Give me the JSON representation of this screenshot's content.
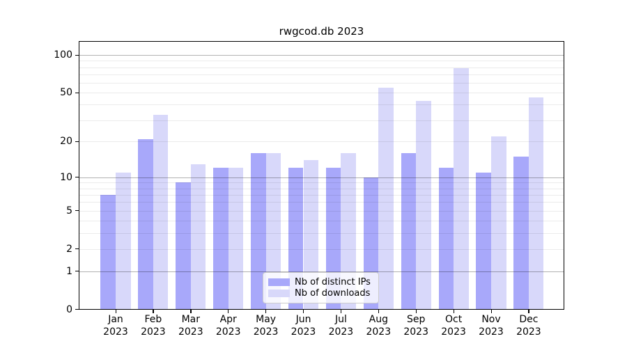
{
  "title": "rwgcod.db 2023",
  "chart_data": {
    "type": "bar",
    "title": "rwgcod.db 2023",
    "categories": [
      "Jan",
      "Feb",
      "Mar",
      "Apr",
      "May",
      "Jun",
      "Jul",
      "Aug",
      "Sep",
      "Oct",
      "Nov",
      "Dec"
    ],
    "year_suffix": "2023",
    "series": [
      {
        "name": "Nb of distinct IPs",
        "color": "#a8a8fa",
        "values": [
          7,
          21,
          9,
          12,
          16,
          12,
          12,
          10,
          16,
          12,
          11,
          15
        ]
      },
      {
        "name": "Nb of downloads",
        "color": "#d8d8fa",
        "values": [
          11,
          33,
          13,
          12,
          16,
          14,
          16,
          55,
          43,
          79,
          22,
          46
        ]
      }
    ],
    "yscale": "log1p",
    "yticks": [
      0,
      1,
      2,
      5,
      10,
      20,
      50,
      100
    ],
    "ylim": [
      0,
      128
    ],
    "xlabel": "",
    "ylabel": "",
    "grid": "horizontal",
    "legend_position": "lower-center"
  },
  "colors": {
    "background": "#ffffff",
    "axis": "#000000",
    "major_grid": "#b3b3b3",
    "minor_grid": "#ebebeb",
    "legend_border": "#cccccc"
  }
}
